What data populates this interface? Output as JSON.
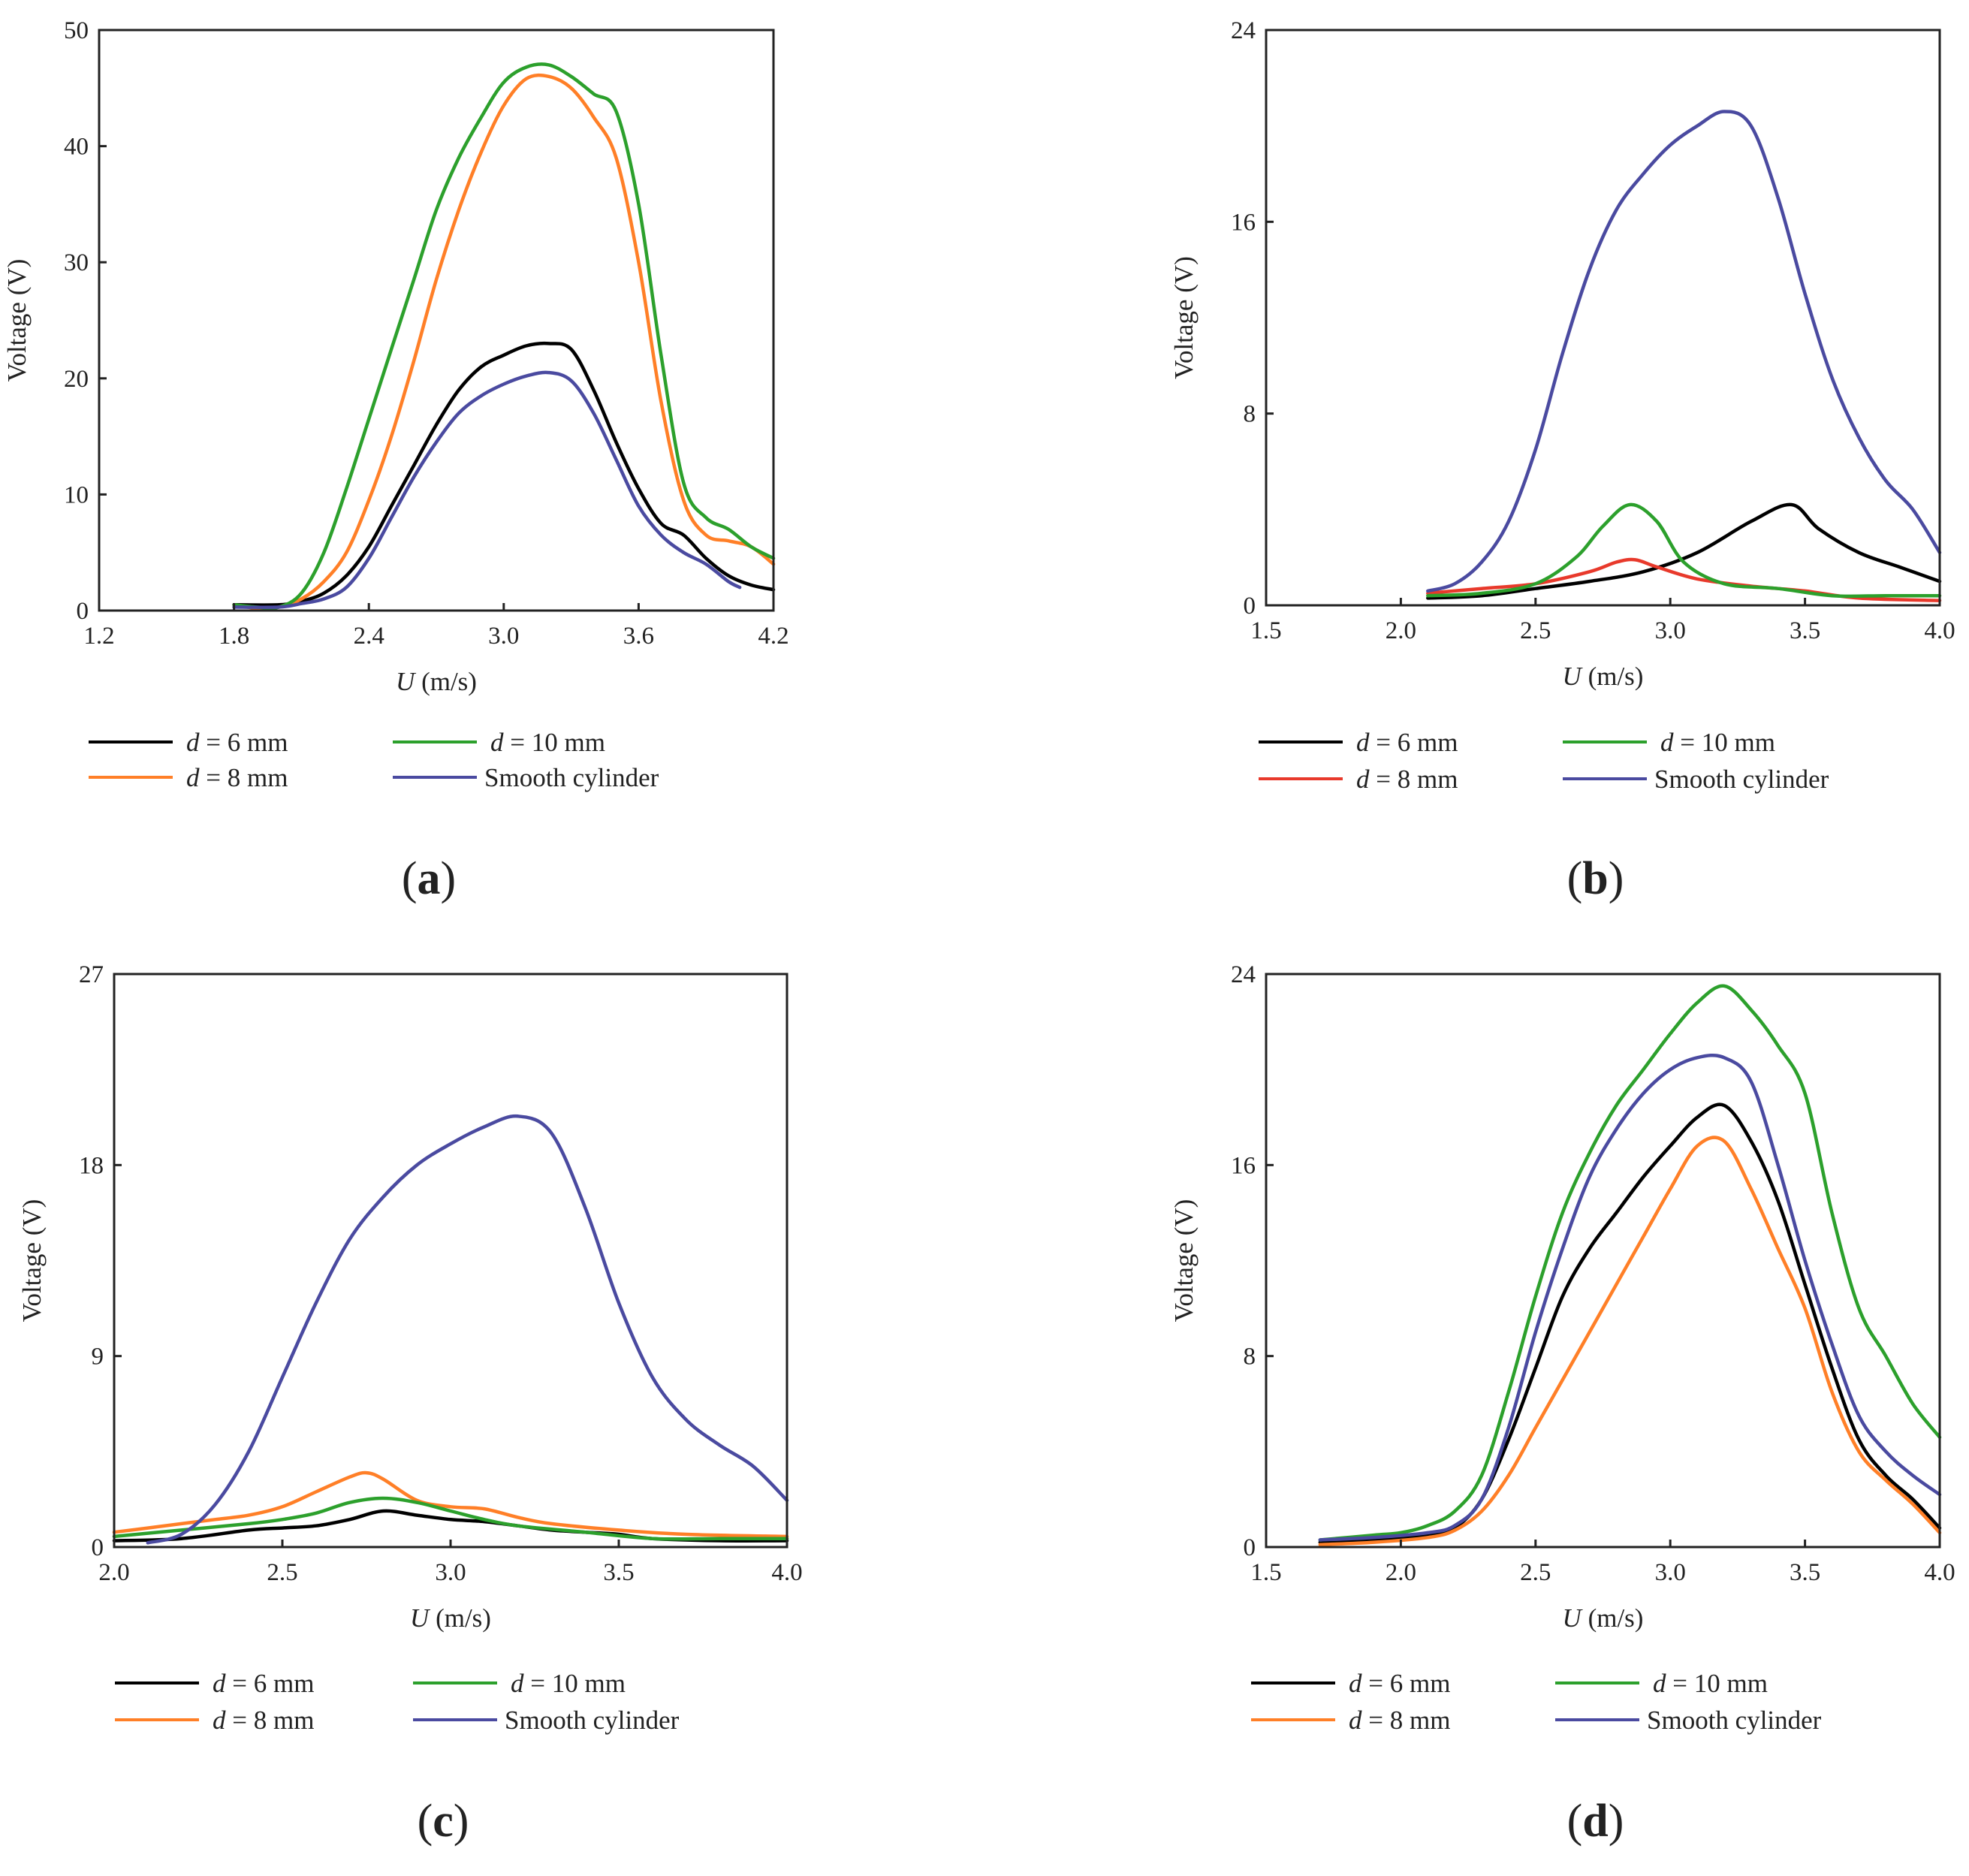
{
  "chart_data": [
    {
      "type": "line",
      "panel_label": "a",
      "xlabel_italic": "U",
      "xlabel_unit": "(m/s)",
      "ylabel": "Voltage (V)",
      "xlim": [
        1.2,
        4.2
      ],
      "ylim": [
        0,
        50
      ],
      "xticks": [
        "1.2",
        "1.8",
        "2.4",
        "3.0",
        "3.6",
        "4.2"
      ],
      "yticks": [
        "0",
        "10",
        "20",
        "30",
        "40",
        "50"
      ],
      "legend": [
        {
          "var": "d",
          "text": " = 6 mm",
          "color": "#000000"
        },
        {
          "var": "d",
          "text": " = 8 mm",
          "color": "#ff7f27"
        },
        {
          "var": "d",
          "text": " = 10 mm",
          "color": "#2ca02c"
        },
        {
          "var": "",
          "text": "Smooth cylinder",
          "color": "#4a4aa0"
        }
      ],
      "series": [
        {
          "name": "d = 6 mm",
          "color": "#000000",
          "x": [
            1.8,
            2.0,
            2.1,
            2.2,
            2.3,
            2.4,
            2.5,
            2.6,
            2.7,
            2.8,
            2.9,
            3.0,
            3.1,
            3.2,
            3.3,
            3.4,
            3.5,
            3.6,
            3.7,
            3.8,
            3.9,
            4.0,
            4.1,
            4.2
          ],
          "y": [
            0.5,
            0.5,
            0.8,
            1.5,
            3.0,
            5.5,
            9.0,
            12.5,
            16.0,
            19.0,
            21.0,
            22.0,
            22.8,
            23.0,
            22.5,
            19.0,
            14.5,
            10.5,
            7.5,
            6.5,
            4.5,
            3.0,
            2.2,
            1.8
          ]
        },
        {
          "name": "d = 8 mm",
          "color": "#ff7f27",
          "x": [
            1.8,
            1.9,
            2.0,
            2.1,
            2.2,
            2.3,
            2.4,
            2.5,
            2.6,
            2.7,
            2.8,
            2.9,
            3.0,
            3.1,
            3.2,
            3.3,
            3.4,
            3.5,
            3.6,
            3.7,
            3.8,
            3.9,
            4.0,
            4.1,
            4.2
          ],
          "y": [
            0.5,
            0.2,
            0.3,
            1.0,
            2.5,
            5.0,
            9.5,
            15.0,
            21.5,
            28.5,
            34.5,
            39.5,
            43.5,
            45.8,
            46.0,
            45.0,
            42.5,
            39.0,
            30.0,
            18.0,
            9.5,
            6.5,
            6.0,
            5.5,
            4.0
          ]
        },
        {
          "name": "d = 10 mm",
          "color": "#2ca02c",
          "x": [
            1.8,
            1.9,
            2.0,
            2.1,
            2.2,
            2.3,
            2.4,
            2.5,
            2.6,
            2.7,
            2.8,
            2.9,
            3.0,
            3.1,
            3.2,
            3.3,
            3.4,
            3.5,
            3.6,
            3.7,
            3.8,
            3.9,
            4.0,
            4.1,
            4.2
          ],
          "y": [
            0.5,
            0.3,
            0.3,
            1.5,
            5.0,
            10.5,
            16.5,
            22.5,
            28.5,
            34.5,
            39.0,
            42.5,
            45.5,
            46.8,
            47.0,
            46.0,
            44.5,
            43.0,
            35.0,
            22.0,
            11.0,
            8.0,
            7.0,
            5.5,
            4.5
          ]
        },
        {
          "name": "Smooth cylinder",
          "color": "#4a4aa0",
          "x": [
            1.8,
            2.0,
            2.1,
            2.2,
            2.3,
            2.4,
            2.5,
            2.6,
            2.7,
            2.8,
            2.9,
            3.0,
            3.1,
            3.2,
            3.3,
            3.4,
            3.5,
            3.6,
            3.7,
            3.8,
            3.9,
            4.0,
            4.05
          ],
          "y": [
            0.3,
            0.3,
            0.6,
            1.0,
            2.0,
            4.5,
            8.0,
            11.5,
            14.5,
            17.0,
            18.5,
            19.5,
            20.2,
            20.5,
            19.8,
            17.0,
            13.0,
            9.0,
            6.5,
            5.0,
            4.0,
            2.5,
            2.0
          ]
        }
      ]
    },
    {
      "type": "line",
      "panel_label": "b",
      "xlabel_italic": "U",
      "xlabel_unit": "(m/s)",
      "ylabel": "Voltage (V)",
      "xlim": [
        1.5,
        4.0
      ],
      "ylim": [
        0,
        24
      ],
      "xticks": [
        "1.5",
        "2.0",
        "2.5",
        "3.0",
        "3.5",
        "4.0"
      ],
      "yticks": [
        "0",
        "8",
        "16",
        "24"
      ],
      "legend": [
        {
          "var": "d",
          "text": " = 6 mm",
          "color": "#000000"
        },
        {
          "var": "d",
          "text": " = 8 mm",
          "color": "#e8392b"
        },
        {
          "var": "d",
          "text": " = 10 mm",
          "color": "#2ca02c"
        },
        {
          "var": "",
          "text": "Smooth cylinder",
          "color": "#4a4aa0"
        }
      ],
      "series": [
        {
          "name": "d = 6 mm",
          "color": "#000000",
          "x": [
            2.1,
            2.3,
            2.5,
            2.7,
            2.9,
            3.1,
            3.3,
            3.45,
            3.55,
            3.7,
            3.85,
            4.0
          ],
          "y": [
            0.3,
            0.4,
            0.7,
            1.0,
            1.4,
            2.2,
            3.5,
            4.2,
            3.2,
            2.2,
            1.6,
            1.0
          ]
        },
        {
          "name": "d = 8 mm",
          "color": "#e8392b",
          "x": [
            2.1,
            2.3,
            2.5,
            2.7,
            2.8,
            2.87,
            2.95,
            3.1,
            3.3,
            3.5,
            3.7,
            4.0
          ],
          "y": [
            0.5,
            0.7,
            0.9,
            1.4,
            1.8,
            1.9,
            1.6,
            1.1,
            0.8,
            0.6,
            0.3,
            0.2
          ]
        },
        {
          "name": "d = 10 mm",
          "color": "#2ca02c",
          "x": [
            2.1,
            2.3,
            2.5,
            2.65,
            2.75,
            2.85,
            2.95,
            3.05,
            3.2,
            3.4,
            3.6,
            3.8,
            4.0
          ],
          "y": [
            0.4,
            0.5,
            0.9,
            2.0,
            3.3,
            4.2,
            3.5,
            1.8,
            0.9,
            0.7,
            0.4,
            0.4,
            0.4
          ]
        },
        {
          "name": "Smooth cylinder",
          "color": "#4a4aa0",
          "x": [
            2.1,
            2.2,
            2.3,
            2.4,
            2.5,
            2.6,
            2.7,
            2.8,
            2.9,
            3.0,
            3.1,
            3.2,
            3.3,
            3.4,
            3.5,
            3.6,
            3.7,
            3.8,
            3.9,
            4.0
          ],
          "y": [
            0.6,
            0.9,
            1.8,
            3.5,
            6.5,
            10.5,
            14.0,
            16.5,
            18.0,
            19.2,
            20.0,
            20.6,
            20.0,
            17.0,
            13.0,
            9.5,
            7.0,
            5.2,
            4.0,
            2.2
          ]
        }
      ]
    },
    {
      "type": "line",
      "panel_label": "c",
      "xlabel_italic": "U",
      "xlabel_unit": "(m/s)",
      "ylabel": "Voltage (V)",
      "xlim": [
        2.0,
        4.0
      ],
      "ylim": [
        0,
        27
      ],
      "xticks": [
        "2.0",
        "2.5",
        "3.0",
        "3.5",
        "4.0"
      ],
      "yticks": [
        "0",
        "9",
        "18",
        "27"
      ],
      "legend": [
        {
          "var": "d",
          "text": " = 6 mm",
          "color": "#000000"
        },
        {
          "var": "d",
          "text": " = 8 mm",
          "color": "#ff7f27"
        },
        {
          "var": "d",
          "text": " = 10 mm",
          "color": "#2ca02c"
        },
        {
          "var": "",
          "text": "Smooth cylinder",
          "color": "#4a4aa0"
        }
      ],
      "series": [
        {
          "name": "d = 6 mm",
          "color": "#000000",
          "x": [
            2.0,
            2.2,
            2.4,
            2.5,
            2.6,
            2.7,
            2.8,
            2.9,
            3.0,
            3.1,
            3.2,
            3.3,
            3.4,
            3.5,
            3.6,
            3.8,
            4.0
          ],
          "y": [
            0.3,
            0.4,
            0.8,
            0.9,
            1.0,
            1.3,
            1.7,
            1.5,
            1.3,
            1.2,
            1.0,
            0.8,
            0.7,
            0.6,
            0.4,
            0.3,
            0.3
          ]
        },
        {
          "name": "d = 8 mm",
          "color": "#ff7f27",
          "x": [
            2.0,
            2.1,
            2.2,
            2.3,
            2.4,
            2.5,
            2.6,
            2.7,
            2.75,
            2.8,
            2.9,
            3.0,
            3.1,
            3.2,
            3.3,
            3.5,
            3.7,
            4.0
          ],
          "y": [
            0.7,
            0.9,
            1.1,
            1.3,
            1.5,
            1.9,
            2.6,
            3.3,
            3.5,
            3.2,
            2.2,
            1.9,
            1.8,
            1.4,
            1.1,
            0.8,
            0.6,
            0.5
          ]
        },
        {
          "name": "d = 10 mm",
          "color": "#2ca02c",
          "x": [
            2.0,
            2.2,
            2.4,
            2.5,
            2.6,
            2.7,
            2.8,
            2.9,
            3.0,
            3.1,
            3.2,
            3.4,
            3.6,
            3.8,
            4.0
          ],
          "y": [
            0.5,
            0.8,
            1.1,
            1.3,
            1.6,
            2.1,
            2.3,
            2.1,
            1.7,
            1.3,
            1.0,
            0.7,
            0.4,
            0.4,
            0.4
          ]
        },
        {
          "name": "Smooth cylinder",
          "color": "#4a4aa0",
          "x": [
            2.1,
            2.2,
            2.3,
            2.4,
            2.5,
            2.6,
            2.7,
            2.8,
            2.9,
            3.0,
            3.1,
            3.2,
            3.3,
            3.4,
            3.5,
            3.6,
            3.7,
            3.8,
            3.9,
            4.0
          ],
          "y": [
            0.2,
            0.6,
            2.0,
            4.5,
            8.0,
            11.5,
            14.5,
            16.5,
            18.0,
            19.0,
            19.8,
            20.3,
            19.5,
            16.0,
            11.5,
            8.0,
            6.0,
            4.8,
            3.8,
            2.2
          ]
        }
      ]
    },
    {
      "type": "line",
      "panel_label": "d",
      "xlabel_italic": "U",
      "xlabel_unit": "(m/s)",
      "ylabel": "Voltage (V)",
      "xlim": [
        1.5,
        4.0
      ],
      "ylim": [
        0,
        24
      ],
      "xticks": [
        "1.5",
        "2.0",
        "2.5",
        "3.0",
        "3.5",
        "4.0"
      ],
      "yticks": [
        "0",
        "8",
        "16",
        "24"
      ],
      "legend": [
        {
          "var": "d",
          "text": " = 6 mm",
          "color": "#000000"
        },
        {
          "var": "d",
          "text": " = 8 mm",
          "color": "#ff7f27"
        },
        {
          "var": "d",
          "text": " = 10 mm",
          "color": "#2ca02c"
        },
        {
          "var": "",
          "text": "Smooth cylinder",
          "color": "#4a4aa0"
        }
      ],
      "series": [
        {
          "name": "d = 6 mm",
          "color": "#000000",
          "x": [
            1.7,
            1.9,
            2.1,
            2.2,
            2.3,
            2.4,
            2.5,
            2.6,
            2.7,
            2.8,
            2.9,
            3.0,
            3.1,
            3.2,
            3.3,
            3.4,
            3.5,
            3.6,
            3.7,
            3.8,
            3.9,
            4.0
          ],
          "y": [
            0.2,
            0.3,
            0.5,
            0.8,
            2.0,
            4.5,
            7.5,
            10.5,
            12.5,
            14.0,
            15.5,
            16.8,
            18.0,
            18.5,
            17.0,
            14.5,
            11.0,
            7.5,
            4.5,
            3.0,
            2.0,
            0.8
          ]
        },
        {
          "name": "d = 8 mm",
          "color": "#ff7f27",
          "x": [
            1.7,
            1.9,
            2.1,
            2.2,
            2.3,
            2.4,
            2.5,
            2.6,
            2.7,
            2.8,
            2.9,
            3.0,
            3.1,
            3.2,
            3.3,
            3.4,
            3.5,
            3.6,
            3.7,
            3.8,
            3.9,
            4.0
          ],
          "y": [
            0.1,
            0.2,
            0.4,
            0.7,
            1.5,
            3.0,
            5.0,
            7.0,
            9.0,
            11.0,
            13.0,
            15.0,
            16.8,
            17.0,
            15.0,
            12.5,
            10.0,
            6.5,
            4.0,
            2.8,
            1.8,
            0.6
          ]
        },
        {
          "name": "d = 10 mm",
          "color": "#2ca02c",
          "x": [
            1.7,
            1.9,
            2.0,
            2.1,
            2.2,
            2.3,
            2.4,
            2.5,
            2.6,
            2.7,
            2.8,
            2.9,
            3.0,
            3.1,
            3.2,
            3.3,
            3.4,
            3.5,
            3.6,
            3.7,
            3.8,
            3.9,
            4.0
          ],
          "y": [
            0.3,
            0.5,
            0.6,
            0.9,
            1.5,
            3.0,
            6.5,
            10.5,
            14.0,
            16.5,
            18.5,
            20.0,
            21.5,
            22.8,
            23.5,
            22.5,
            21.0,
            19.0,
            14.0,
            10.0,
            8.0,
            6.0,
            4.6
          ]
        },
        {
          "name": "Smooth cylinder",
          "color": "#4a4aa0",
          "x": [
            1.7,
            1.9,
            2.1,
            2.2,
            2.3,
            2.4,
            2.5,
            2.6,
            2.7,
            2.8,
            2.9,
            3.0,
            3.1,
            3.2,
            3.3,
            3.4,
            3.5,
            3.6,
            3.7,
            3.8,
            3.9,
            4.0
          ],
          "y": [
            0.3,
            0.4,
            0.6,
            0.9,
            2.0,
            5.0,
            9.0,
            12.5,
            15.5,
            17.5,
            19.0,
            20.0,
            20.5,
            20.5,
            19.5,
            16.0,
            12.0,
            8.5,
            5.5,
            4.0,
            3.0,
            2.2
          ]
        }
      ]
    }
  ]
}
